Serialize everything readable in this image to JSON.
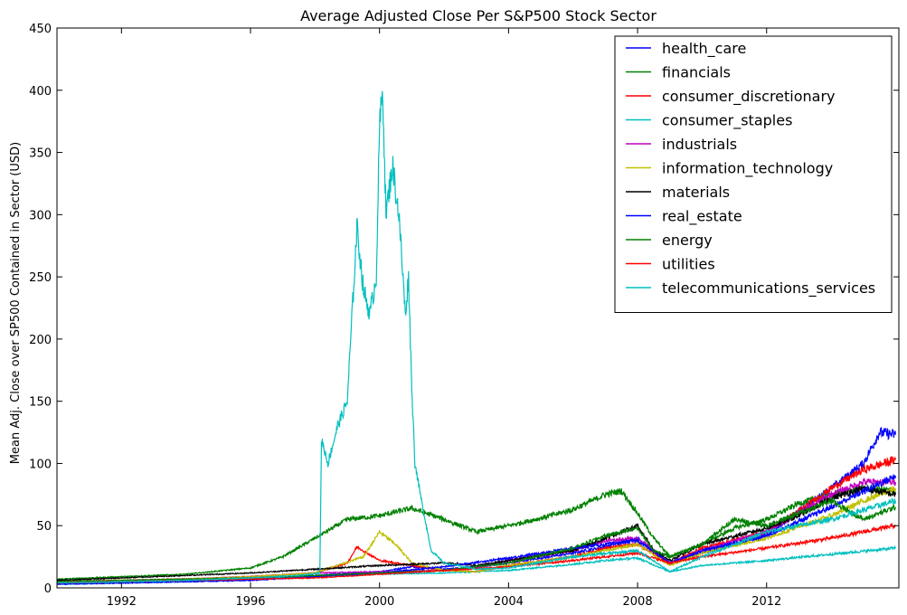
{
  "chart_data": {
    "type": "line",
    "title": "Average Adjusted Close Per S&P500 Stock Sector",
    "xlabel": "",
    "ylabel": "Mean Adj. Close over SP500 Contained in Sector (USD)",
    "xlim": [
      1990.0,
      2016.1
    ],
    "ylim": [
      0,
      450
    ],
    "xticks": [
      1992,
      1996,
      2000,
      2004,
      2008,
      2012
    ],
    "xtick_labels": [
      "1992",
      "1996",
      "2000",
      "2004",
      "2008",
      "2012"
    ],
    "yticks": [
      0,
      50,
      100,
      150,
      200,
      250,
      300,
      350,
      400,
      450
    ],
    "ytick_labels": [
      "0",
      "50",
      "100",
      "150",
      "200",
      "250",
      "300",
      "350",
      "400",
      "450"
    ],
    "grid": false,
    "legend_position": "top-right",
    "series": [
      {
        "name": "health_care",
        "color": "#0000ff",
        "x": [
          1990,
          1992,
          1994,
          1996,
          1998,
          2000,
          2001,
          2002,
          2003,
          2004,
          2006,
          2007,
          2008,
          2008.5,
          2009,
          2010,
          2012,
          2013,
          2014,
          2015,
          2015.5,
          2016
        ],
        "y": [
          3,
          4,
          5,
          7,
          10,
          13,
          17,
          15,
          17,
          20,
          28,
          33,
          40,
          30,
          20,
          28,
          42,
          62,
          80,
          100,
          125,
          123
        ]
      },
      {
        "name": "financials",
        "color": "#008000",
        "x": [
          1990,
          1992,
          1994,
          1996,
          1997,
          1998,
          1999,
          2000,
          2001,
          2002,
          2003,
          2004,
          2005,
          2006,
          2007,
          2007.5,
          2008,
          2008.5,
          2009,
          2010,
          2011,
          2012,
          2013,
          2014,
          2015,
          2016
        ],
        "y": [
          7,
          9,
          11,
          16,
          25,
          40,
          55,
          58,
          64,
          55,
          45,
          50,
          56,
          63,
          75,
          78,
          60,
          40,
          25,
          35,
          48,
          55,
          68,
          75,
          80,
          78
        ]
      },
      {
        "name": "consumer_discretionary",
        "color": "#ff0000",
        "x": [
          1990,
          1992,
          1994,
          1996,
          1998,
          1999,
          1999.3,
          2000,
          2001,
          2002,
          2003,
          2004,
          2006,
          2007,
          2008,
          2009,
          2010,
          2012,
          2013,
          2014,
          2015,
          2016
        ],
        "y": [
          5,
          6,
          7,
          9,
          12,
          20,
          33,
          22,
          18,
          14,
          13,
          18,
          25,
          32,
          35,
          20,
          32,
          45,
          62,
          80,
          95,
          103
        ]
      },
      {
        "name": "consumer_staples",
        "color": "#00bfbf",
        "x": [
          1990,
          1992,
          1994,
          1996,
          1998,
          2000,
          2002,
          2004,
          2006,
          2007,
          2008,
          2009,
          2010,
          2012,
          2014,
          2016
        ],
        "y": [
          3,
          4,
          5,
          7,
          9,
          11,
          12,
          14,
          19,
          22,
          24,
          13,
          18,
          22,
          27,
          32
        ]
      },
      {
        "name": "industrials",
        "color": "#bf00bf",
        "x": [
          1990,
          1992,
          1994,
          1996,
          1998,
          2000,
          2002,
          2003,
          2004,
          2006,
          2007,
          2008,
          2009,
          2010,
          2012,
          2013,
          2014,
          2015,
          2016
        ],
        "y": [
          5,
          6,
          7,
          9,
          12,
          13,
          14,
          16,
          22,
          30,
          38,
          40,
          20,
          30,
          45,
          60,
          75,
          85,
          85
        ]
      },
      {
        "name": "information_technology",
        "color": "#bfbf00",
        "x": [
          1990,
          1992,
          1994,
          1996,
          1998,
          1999.5,
          2000,
          2000.5,
          2001,
          2002,
          2003,
          2004,
          2006,
          2008,
          2009,
          2010,
          2012,
          2014,
          2015,
          2016
        ],
        "y": [
          5,
          6,
          7,
          9,
          12,
          25,
          45,
          35,
          20,
          14,
          13,
          18,
          25,
          35,
          18,
          28,
          40,
          58,
          70,
          80
        ]
      },
      {
        "name": "materials",
        "color": "#000000",
        "x": [
          1990,
          1992,
          1994,
          1996,
          1998,
          2000,
          2002,
          2003,
          2004,
          2006,
          2007,
          2008,
          2008.5,
          2009,
          2010,
          2012,
          2013,
          2014,
          2015,
          2016
        ],
        "y": [
          6,
          8,
          10,
          12,
          15,
          18,
          20,
          18,
          22,
          30,
          40,
          50,
          30,
          22,
          35,
          48,
          58,
          72,
          80,
          75
        ]
      },
      {
        "name": "real_estate",
        "color": "#0000ff",
        "x": [
          1990,
          1992,
          1994,
          1996,
          1998,
          2000,
          2002,
          2004,
          2006,
          2008,
          2009,
          2010,
          2012,
          2014,
          2016
        ],
        "y": [
          3,
          4,
          5,
          6,
          9,
          12,
          17,
          24,
          32,
          38,
          20,
          30,
          42,
          65,
          90
        ]
      },
      {
        "name": "energy",
        "color": "#008000",
        "x": [
          1990,
          1992,
          1994,
          1996,
          1998,
          2000,
          2002,
          2004,
          2006,
          2007,
          2008,
          2008.5,
          2009,
          2010,
          2011,
          2012,
          2013,
          2014,
          2015,
          2016
        ],
        "y": [
          5,
          6,
          7,
          8,
          10,
          12,
          14,
          20,
          32,
          42,
          48,
          30,
          25,
          35,
          55,
          50,
          60,
          70,
          55,
          65
        ]
      },
      {
        "name": "utilities",
        "color": "#ff0000",
        "x": [
          1990,
          1992,
          1994,
          1996,
          1998,
          2000,
          2002,
          2004,
          2006,
          2008,
          2009,
          2010,
          2012,
          2014,
          2016
        ],
        "y": [
          4,
          5,
          6,
          7,
          8,
          11,
          14,
          17,
          22,
          28,
          20,
          25,
          32,
          40,
          50
        ]
      },
      {
        "name": "telecommunications_services",
        "color": "#00bfbf",
        "x": [
          1990,
          1992,
          1994,
          1996,
          1997.5,
          1998.15,
          1998.2,
          1998.4,
          1998.7,
          1999.0,
          1999.3,
          1999.5,
          1999.7,
          1999.9,
          2000.0,
          2000.1,
          2000.2,
          2000.4,
          2000.6,
          2000.8,
          2000.9,
          2001.0,
          2001.1,
          2001.3,
          2001.6,
          2002,
          2003,
          2004,
          2006,
          2008,
          2009,
          2010,
          2012,
          2014,
          2016
        ],
        "y": [
          4,
          5,
          6,
          8,
          10,
          12,
          120,
          100,
          130,
          150,
          290,
          240,
          220,
          250,
          370,
          400,
          300,
          340,
          300,
          220,
          250,
          160,
          100,
          70,
          30,
          20,
          15,
          16,
          25,
          30,
          13,
          25,
          45,
          55,
          70
        ]
      }
    ]
  }
}
